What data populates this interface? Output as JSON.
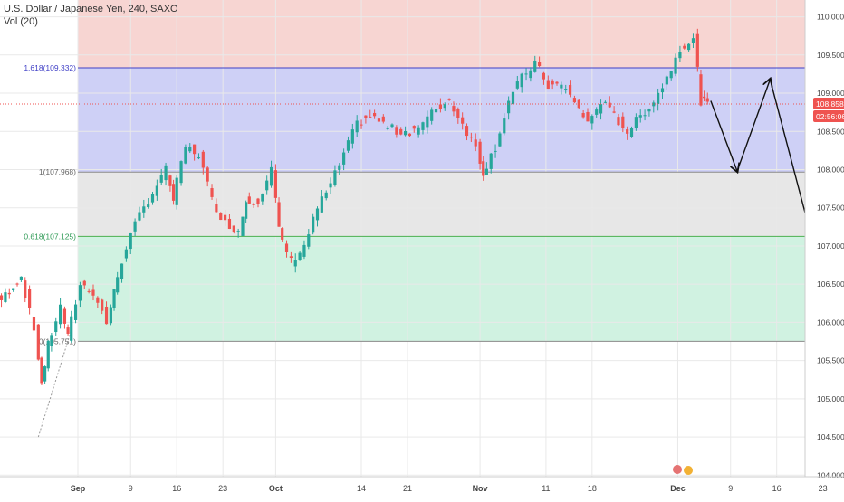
{
  "header": {
    "symbol": "U.S. Dollar / Japanese Yen, 240, SAXO",
    "indicator": "Vol (20)"
  },
  "price_badges": {
    "last_price": "108.858",
    "countdown": "02:56:06"
  },
  "colors": {
    "up": "#26a69a",
    "down": "#ef5350",
    "band_red": "#f4c7c3",
    "band_blue": "#c5c8f5",
    "band_gray": "#e3e3e3",
    "band_green": "#c8f0dc",
    "fib_line_blue": "#3f3fc6",
    "fib_line_gray": "#8a8a8a",
    "fib_line_green": "#4caf50"
  },
  "chart_data": {
    "type": "candlestick",
    "instrument": "U.S. Dollar / Japanese Yen",
    "timeframe": "240",
    "source": "SAXO",
    "y_ticks": [
      "110.000",
      "109.500",
      "109.000",
      "108.500",
      "108.000",
      "107.500",
      "107.000",
      "106.500",
      "106.000",
      "105.500",
      "105.000",
      "104.500",
      "104.000"
    ],
    "ylim": [
      103.98,
      110.22
    ],
    "x_ticks": [
      {
        "label": "Sep",
        "bold": true,
        "day": 0
      },
      {
        "label": "9",
        "bold": false,
        "day": 8
      },
      {
        "label": "16",
        "bold": false,
        "day": 15
      },
      {
        "label": "23",
        "bold": false,
        "day": 22
      },
      {
        "label": "Oct",
        "bold": true,
        "day": 30
      },
      {
        "label": "14",
        "bold": false,
        "day": 43
      },
      {
        "label": "21",
        "bold": false,
        "day": 50
      },
      {
        "label": "Nov",
        "bold": true,
        "day": 61
      },
      {
        "label": "11",
        "bold": false,
        "day": 71
      },
      {
        "label": "18",
        "bold": false,
        "day": 78
      },
      {
        "label": "Dec",
        "bold": true,
        "day": 91
      },
      {
        "label": "9",
        "bold": false,
        "day": 99
      },
      {
        "label": "16",
        "bold": false,
        "day": 106
      },
      {
        "label": "23",
        "bold": false,
        "day": 113
      }
    ],
    "xlim_days": [
      -14,
      120
    ],
    "fib_levels": [
      {
        "label": "1.618(109.332)",
        "value": 109.332
      },
      {
        "label": "1(107.968)",
        "value": 107.968
      },
      {
        "label": "0.618(107.125)",
        "value": 107.125
      },
      {
        "label": "0(105.751)",
        "value": 105.751
      }
    ],
    "fib_top": 110.22,
    "fib_start_day": 0,
    "current_price": 108.858,
    "path": [
      [
        -14,
        106.5
      ],
      [
        -11,
        106.3
      ],
      [
        -8,
        106.6
      ],
      [
        -6,
        105.9
      ],
      [
        -5,
        105.2
      ],
      [
        -4,
        105.7
      ],
      [
        -2,
        106.2
      ],
      [
        -1,
        105.8
      ],
      [
        1,
        106.5
      ],
      [
        3,
        106.4
      ],
      [
        5,
        106.0
      ],
      [
        6,
        106.4
      ],
      [
        8,
        107.0
      ],
      [
        10,
        107.4
      ],
      [
        12,
        107.7
      ],
      [
        14,
        108.0
      ],
      [
        15,
        107.6
      ],
      [
        17,
        108.3
      ],
      [
        19,
        108.2
      ],
      [
        21,
        107.6
      ],
      [
        23,
        107.3
      ],
      [
        25,
        107.2
      ],
      [
        26,
        107.6
      ],
      [
        28,
        107.6
      ],
      [
        30,
        108.0
      ],
      [
        31,
        107.2
      ],
      [
        33,
        106.8
      ],
      [
        35,
        107.0
      ],
      [
        37,
        107.5
      ],
      [
        39,
        107.8
      ],
      [
        41,
        108.2
      ],
      [
        43,
        108.6
      ],
      [
        45,
        108.7
      ],
      [
        47,
        108.6
      ],
      [
        49,
        108.5
      ],
      [
        51,
        108.5
      ],
      [
        53,
        108.6
      ],
      [
        55,
        108.8
      ],
      [
        57,
        108.9
      ],
      [
        59,
        108.6
      ],
      [
        61,
        108.3
      ],
      [
        62,
        107.95
      ],
      [
        64,
        108.3
      ],
      [
        66,
        108.9
      ],
      [
        68,
        109.2
      ],
      [
        70,
        109.4
      ],
      [
        72,
        109.1
      ],
      [
        74,
        109.1
      ],
      [
        76,
        108.9
      ],
      [
        78,
        108.6
      ],
      [
        80,
        108.9
      ],
      [
        82,
        108.7
      ],
      [
        84,
        108.5
      ],
      [
        86,
        108.7
      ],
      [
        88,
        108.9
      ],
      [
        90,
        109.2
      ],
      [
        92,
        109.6
      ],
      [
        94,
        109.7
      ],
      [
        95,
        108.9
      ],
      [
        96,
        108.858
      ]
    ],
    "projection": [
      [
        96,
        108.9
      ],
      [
        100,
        107.98
      ],
      [
        105,
        109.18
      ],
      [
        113,
        106.55
      ]
    ]
  }
}
